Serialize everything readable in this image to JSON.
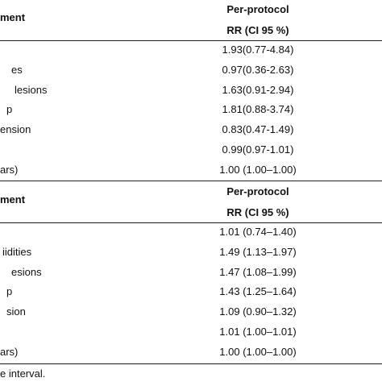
{
  "sections": [
    {
      "header": {
        "label": "ment",
        "col_title": "Per-protocol",
        "col_subtitle": "RR (CI 95 %)"
      },
      "rows": [
        {
          "value": "1.93(0.77-4.84)"
        },
        {
          "label": "es",
          "value": "0.97(0.36-2.63)"
        },
        {
          "label": "lesions",
          "value": "1.63(0.91-2.94)"
        },
        {
          "label": "p",
          "value": "1.81(0.88-3.74)"
        },
        {
          "label": "ension",
          "value": "0.83(0.47-1.49)"
        },
        {
          "value": "0.99(0.97-1.01)"
        },
        {
          "label": "ars)",
          "value": "1.00 (1.00–1.00)"
        }
      ]
    },
    {
      "header": {
        "label": "ment",
        "col_title": "Per-protocol",
        "col_subtitle": "RR (CI 95 %)"
      },
      "rows": [
        {
          "value": "1.01 (0.74–1.40)"
        },
        {
          "label": "iidities",
          "value": "1.49 (1.13–1.97)"
        },
        {
          "label": "esions",
          "value": "1.47 (1.08–1.99)"
        },
        {
          "label": "p",
          "value": "1.43 (1.25–1.64)"
        },
        {
          "label": "sion",
          "value": "1.09 (0.90–1.32)"
        },
        {
          "value": "1.01 (1.00–1.01)"
        },
        {
          "label": "ars)",
          "value": "1.00 (1.00–1.00)"
        }
      ]
    }
  ],
  "footer": "e interval."
}
